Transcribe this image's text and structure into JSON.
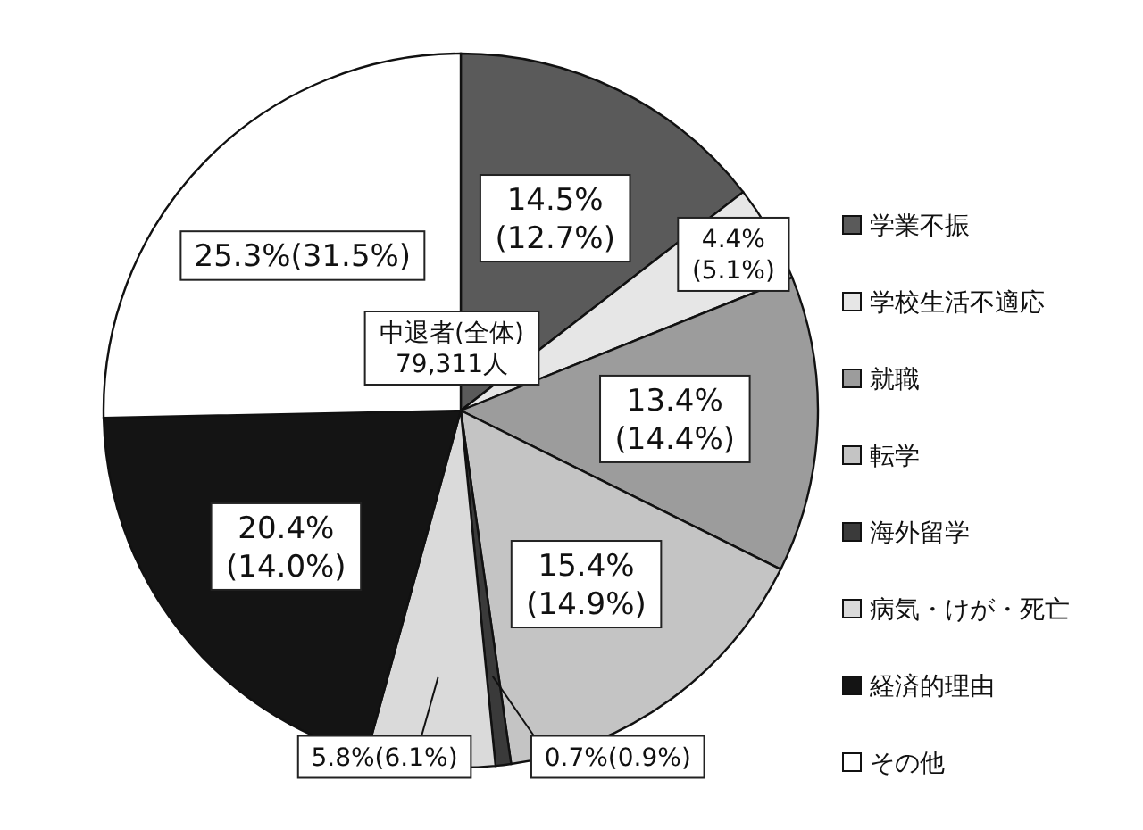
{
  "chart_data": {
    "type": "pie",
    "categories": [
      "学業不振",
      "学校生活不適応",
      "就職",
      "転学",
      "海外留学",
      "病気・けが・死亡",
      "経済的理由",
      "その他"
    ],
    "values": [
      14.5,
      4.4,
      13.4,
      15.4,
      0.7,
      5.8,
      20.4,
      25.3
    ],
    "colors": [
      "#5a5a5a",
      "#e6e6e6",
      "#9c9c9c",
      "#c4c4c4",
      "#3a3a3a",
      "#dadada",
      "#141414",
      "#ffffff"
    ],
    "value_labels": [
      "14.5%\n(12.7%)",
      "4.4%\n(5.1%)",
      "13.4%\n(14.4%)",
      "15.4%\n(14.9%)",
      "0.7%(0.9%)",
      "5.8%(6.1%)",
      "20.4%\n(14.0%)",
      "25.3%(31.5%)"
    ],
    "annotations": [
      "中退者(全体)\n79,311人"
    ],
    "legend": "right"
  }
}
